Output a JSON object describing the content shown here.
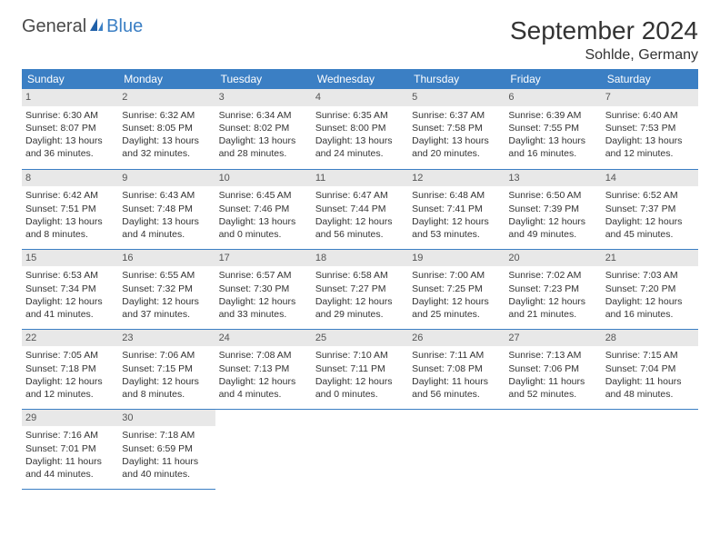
{
  "logo": {
    "part1": "General",
    "part2": "Blue"
  },
  "title": "September 2024",
  "location": "Sohlde, Germany",
  "weekdays": [
    "Sunday",
    "Monday",
    "Tuesday",
    "Wednesday",
    "Thursday",
    "Friday",
    "Saturday"
  ],
  "colors": {
    "header_bg": "#3b7fc4",
    "header_fg": "#ffffff",
    "daynum_bg": "#e8e8e8",
    "border": "#3b7fc4",
    "logo_gray": "#4a4a4a",
    "logo_blue": "#3b7fc4"
  },
  "days": [
    {
      "n": "1",
      "sunrise": "6:30 AM",
      "sunset": "8:07 PM",
      "daylight": "13 hours and 36 minutes."
    },
    {
      "n": "2",
      "sunrise": "6:32 AM",
      "sunset": "8:05 PM",
      "daylight": "13 hours and 32 minutes."
    },
    {
      "n": "3",
      "sunrise": "6:34 AM",
      "sunset": "8:02 PM",
      "daylight": "13 hours and 28 minutes."
    },
    {
      "n": "4",
      "sunrise": "6:35 AM",
      "sunset": "8:00 PM",
      "daylight": "13 hours and 24 minutes."
    },
    {
      "n": "5",
      "sunrise": "6:37 AM",
      "sunset": "7:58 PM",
      "daylight": "13 hours and 20 minutes."
    },
    {
      "n": "6",
      "sunrise": "6:39 AM",
      "sunset": "7:55 PM",
      "daylight": "13 hours and 16 minutes."
    },
    {
      "n": "7",
      "sunrise": "6:40 AM",
      "sunset": "7:53 PM",
      "daylight": "13 hours and 12 minutes."
    },
    {
      "n": "8",
      "sunrise": "6:42 AM",
      "sunset": "7:51 PM",
      "daylight": "13 hours and 8 minutes."
    },
    {
      "n": "9",
      "sunrise": "6:43 AM",
      "sunset": "7:48 PM",
      "daylight": "13 hours and 4 minutes."
    },
    {
      "n": "10",
      "sunrise": "6:45 AM",
      "sunset": "7:46 PM",
      "daylight": "13 hours and 0 minutes."
    },
    {
      "n": "11",
      "sunrise": "6:47 AM",
      "sunset": "7:44 PM",
      "daylight": "12 hours and 56 minutes."
    },
    {
      "n": "12",
      "sunrise": "6:48 AM",
      "sunset": "7:41 PM",
      "daylight": "12 hours and 53 minutes."
    },
    {
      "n": "13",
      "sunrise": "6:50 AM",
      "sunset": "7:39 PM",
      "daylight": "12 hours and 49 minutes."
    },
    {
      "n": "14",
      "sunrise": "6:52 AM",
      "sunset": "7:37 PM",
      "daylight": "12 hours and 45 minutes."
    },
    {
      "n": "15",
      "sunrise": "6:53 AM",
      "sunset": "7:34 PM",
      "daylight": "12 hours and 41 minutes."
    },
    {
      "n": "16",
      "sunrise": "6:55 AM",
      "sunset": "7:32 PM",
      "daylight": "12 hours and 37 minutes."
    },
    {
      "n": "17",
      "sunrise": "6:57 AM",
      "sunset": "7:30 PM",
      "daylight": "12 hours and 33 minutes."
    },
    {
      "n": "18",
      "sunrise": "6:58 AM",
      "sunset": "7:27 PM",
      "daylight": "12 hours and 29 minutes."
    },
    {
      "n": "19",
      "sunrise": "7:00 AM",
      "sunset": "7:25 PM",
      "daylight": "12 hours and 25 minutes."
    },
    {
      "n": "20",
      "sunrise": "7:02 AM",
      "sunset": "7:23 PM",
      "daylight": "12 hours and 21 minutes."
    },
    {
      "n": "21",
      "sunrise": "7:03 AM",
      "sunset": "7:20 PM",
      "daylight": "12 hours and 16 minutes."
    },
    {
      "n": "22",
      "sunrise": "7:05 AM",
      "sunset": "7:18 PM",
      "daylight": "12 hours and 12 minutes."
    },
    {
      "n": "23",
      "sunrise": "7:06 AM",
      "sunset": "7:15 PM",
      "daylight": "12 hours and 8 minutes."
    },
    {
      "n": "24",
      "sunrise": "7:08 AM",
      "sunset": "7:13 PM",
      "daylight": "12 hours and 4 minutes."
    },
    {
      "n": "25",
      "sunrise": "7:10 AM",
      "sunset": "7:11 PM",
      "daylight": "12 hours and 0 minutes."
    },
    {
      "n": "26",
      "sunrise": "7:11 AM",
      "sunset": "7:08 PM",
      "daylight": "11 hours and 56 minutes."
    },
    {
      "n": "27",
      "sunrise": "7:13 AM",
      "sunset": "7:06 PM",
      "daylight": "11 hours and 52 minutes."
    },
    {
      "n": "28",
      "sunrise": "7:15 AM",
      "sunset": "7:04 PM",
      "daylight": "11 hours and 48 minutes."
    },
    {
      "n": "29",
      "sunrise": "7:16 AM",
      "sunset": "7:01 PM",
      "daylight": "11 hours and 44 minutes."
    },
    {
      "n": "30",
      "sunrise": "7:18 AM",
      "sunset": "6:59 PM",
      "daylight": "11 hours and 40 minutes."
    }
  ],
  "labels": {
    "sunrise": "Sunrise:",
    "sunset": "Sunset:",
    "daylight": "Daylight:"
  }
}
